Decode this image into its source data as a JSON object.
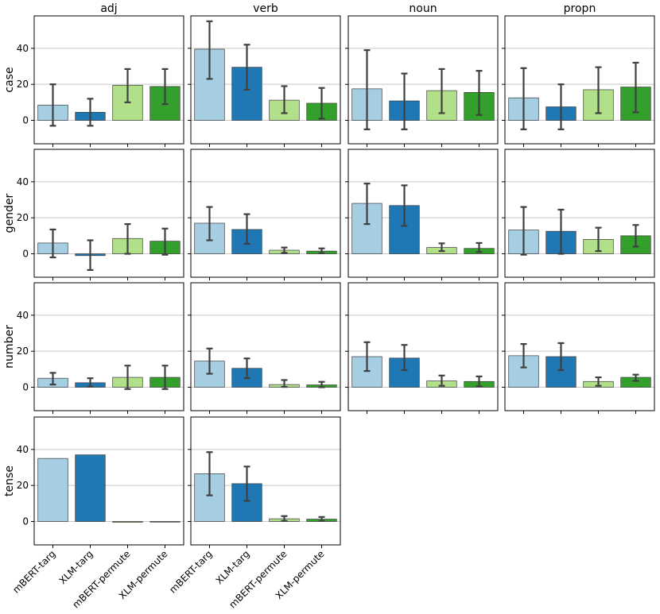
{
  "chart_data": {
    "type": "bar",
    "layout": "facet-grid",
    "columns": [
      "adj",
      "verb",
      "noun",
      "propn"
    ],
    "rows": [
      "case",
      "gender",
      "number",
      "tense"
    ],
    "categories": [
      "mBERT-targ",
      "XLM-targ",
      "mBERT-permute",
      "XLM-permute"
    ],
    "colors": [
      "#a6cee3",
      "#1f78b4",
      "#b2df8a",
      "#33a02c"
    ],
    "ylim": [
      -13,
      58
    ],
    "yticks": [
      0,
      20,
      40
    ],
    "grid": "y",
    "panels": [
      {
        "row": "case",
        "col": "adj",
        "values": [
          8.5,
          4.5,
          19.5,
          18.8
        ],
        "err_low": [
          -3,
          -3,
          10,
          9
        ],
        "err_high": [
          20,
          12,
          28.5,
          28.5
        ]
      },
      {
        "row": "case",
        "col": "verb",
        "values": [
          39.5,
          29.5,
          11.2,
          9.5
        ],
        "err_low": [
          23,
          17,
          4,
          1
        ],
        "err_high": [
          55,
          42,
          19,
          18
        ]
      },
      {
        "row": "case",
        "col": "noun",
        "values": [
          17.5,
          10.8,
          16.5,
          15.5
        ],
        "err_low": [
          -5,
          -5,
          4,
          3
        ],
        "err_high": [
          39,
          26,
          28.5,
          27.5
        ]
      },
      {
        "row": "case",
        "col": "propn",
        "values": [
          12.5,
          7.5,
          17,
          18.5
        ],
        "err_low": [
          -5,
          -5,
          4,
          4.5
        ],
        "err_high": [
          29,
          20,
          29.5,
          32
        ]
      },
      {
        "row": "gender",
        "col": "adj",
        "values": [
          6,
          -1,
          8.5,
          7
        ],
        "err_low": [
          -2,
          -9,
          0,
          -0.5
        ],
        "err_high": [
          13.5,
          7.5,
          16.5,
          14
        ]
      },
      {
        "row": "gender",
        "col": "verb",
        "values": [
          17,
          13.5,
          2,
          1.5
        ],
        "err_low": [
          7.5,
          5.5,
          0.5,
          0.3
        ],
        "err_high": [
          26,
          22,
          3.5,
          3
        ]
      },
      {
        "row": "gender",
        "col": "noun",
        "values": [
          28,
          26.8,
          3.5,
          3
        ],
        "err_low": [
          16.5,
          15.5,
          1.5,
          1
        ],
        "err_high": [
          39,
          38,
          5.8,
          6
        ]
      },
      {
        "row": "gender",
        "col": "propn",
        "values": [
          13.2,
          12.5,
          8,
          10
        ],
        "err_low": [
          -0.5,
          0,
          1.5,
          4
        ],
        "err_high": [
          26,
          24.5,
          14.5,
          16
        ]
      },
      {
        "row": "number",
        "col": "adj",
        "values": [
          5,
          2.5,
          5.5,
          5.5
        ],
        "err_low": [
          1.5,
          0.3,
          -1,
          -1
        ],
        "err_high": [
          8,
          5,
          12,
          12
        ]
      },
      {
        "row": "number",
        "col": "verb",
        "values": [
          14.5,
          10.5,
          1.5,
          1.3
        ],
        "err_low": [
          7.5,
          5,
          0.2,
          0
        ],
        "err_high": [
          21.5,
          16,
          4,
          3
        ]
      },
      {
        "row": "number",
        "col": "noun",
        "values": [
          17,
          16.2,
          3.5,
          3.2
        ],
        "err_low": [
          9,
          9.5,
          0.8,
          0.5
        ],
        "err_high": [
          25,
          23.5,
          6.5,
          6
        ]
      },
      {
        "row": "number",
        "col": "propn",
        "values": [
          17.5,
          17,
          3.2,
          5.5
        ],
        "err_low": [
          11,
          9.5,
          0.8,
          3.5
        ],
        "err_high": [
          24,
          24.5,
          5.5,
          7
        ]
      },
      {
        "row": "tense",
        "col": "adj",
        "values": [
          35,
          37,
          -0.5,
          0
        ],
        "err_low": [
          null,
          null,
          null,
          null
        ],
        "err_high": [
          null,
          null,
          null,
          null
        ]
      },
      {
        "row": "tense",
        "col": "verb",
        "values": [
          26.5,
          21,
          1.5,
          1.3
        ],
        "err_low": [
          14.5,
          11.5,
          0.3,
          0.3
        ],
        "err_high": [
          38.5,
          30.5,
          3,
          2.5
        ]
      }
    ]
  }
}
